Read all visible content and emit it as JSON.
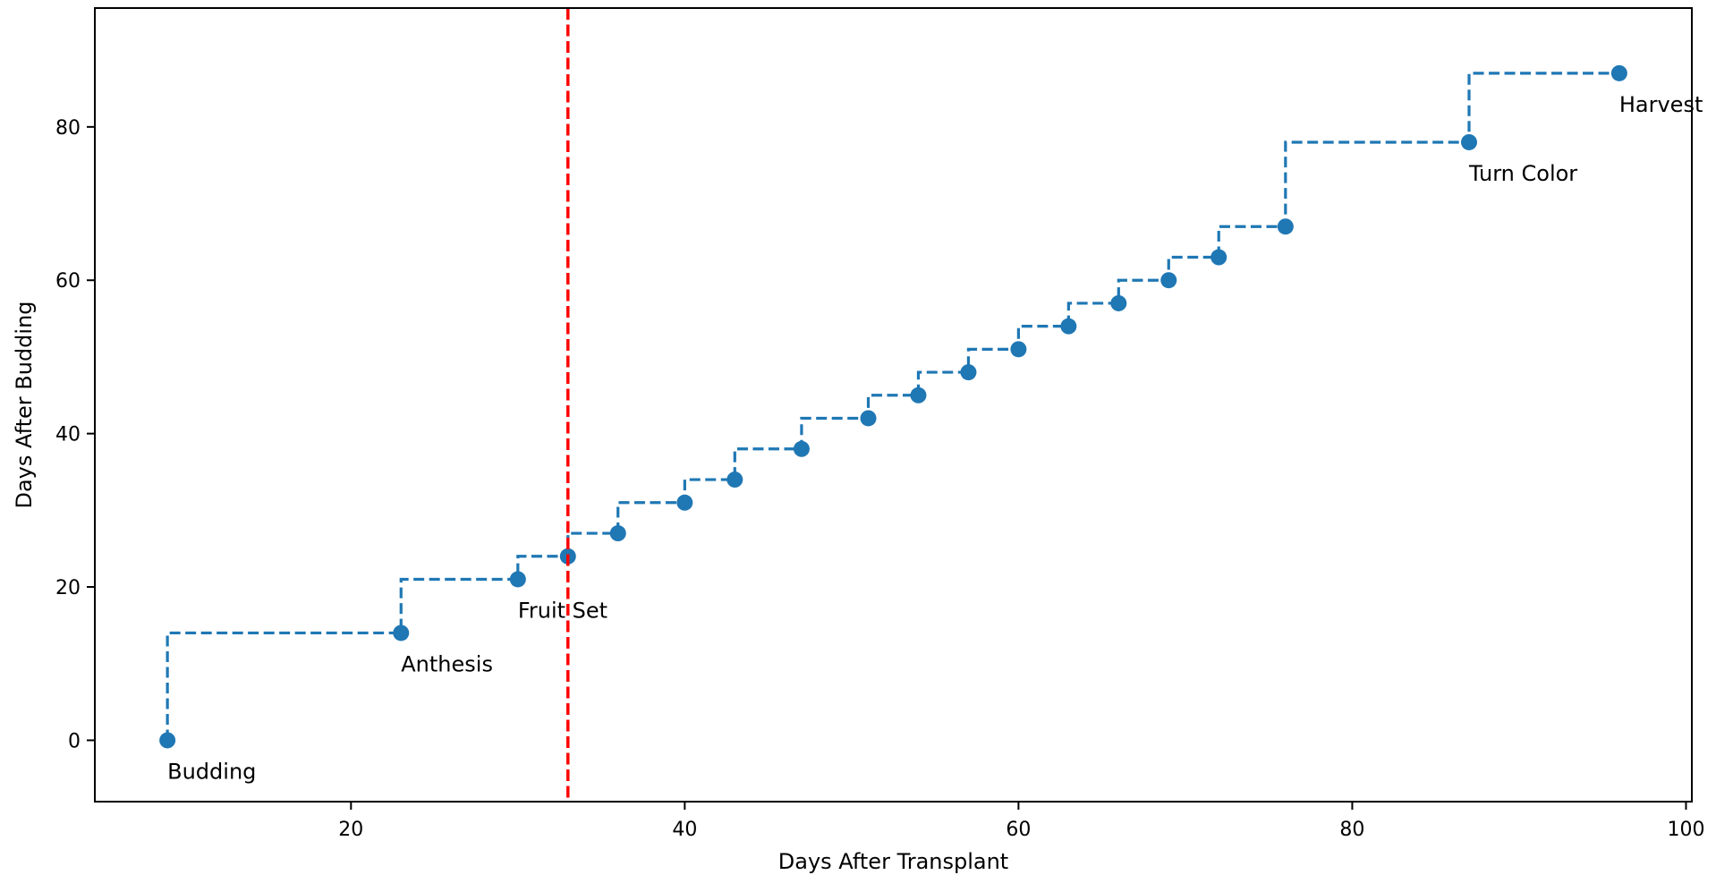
{
  "chart_data": {
    "type": "line",
    "title": "",
    "xlabel": "Days After Transplant",
    "ylabel": "Days After Budding",
    "xlim": [
      4.65,
      100.35
    ],
    "ylim": [
      -8,
      95.5
    ],
    "xticks": [
      20,
      40,
      60,
      80,
      100
    ],
    "yticks": [
      0,
      20,
      40,
      60,
      80
    ],
    "grid": false,
    "line_style": "steps-pre dashed",
    "series": [
      {
        "color": "#1f77b4",
        "x": [
          9,
          23,
          30,
          33,
          36,
          40,
          43,
          47,
          51,
          54,
          57,
          60,
          63,
          66,
          69,
          72,
          76,
          87,
          96
        ],
        "y": [
          0,
          14,
          21,
          24,
          27,
          31,
          34,
          38,
          42,
          45,
          48,
          51,
          54,
          57,
          60,
          63,
          67,
          78,
          87
        ]
      }
    ],
    "annotations": [
      {
        "text": "Budding",
        "x": 9,
        "y": 0
      },
      {
        "text": "Anthesis",
        "x": 23,
        "y": 14
      },
      {
        "text": "Fruit Set",
        "x": 30,
        "y": 21
      },
      {
        "text": "Turn Color",
        "x": 87,
        "y": 78
      },
      {
        "text": "Harvest",
        "x": 96,
        "y": 87
      }
    ],
    "reference_lines": [
      {
        "orientation": "vertical",
        "x": 33,
        "color": "#ff0000",
        "style": "dashed"
      }
    ]
  }
}
